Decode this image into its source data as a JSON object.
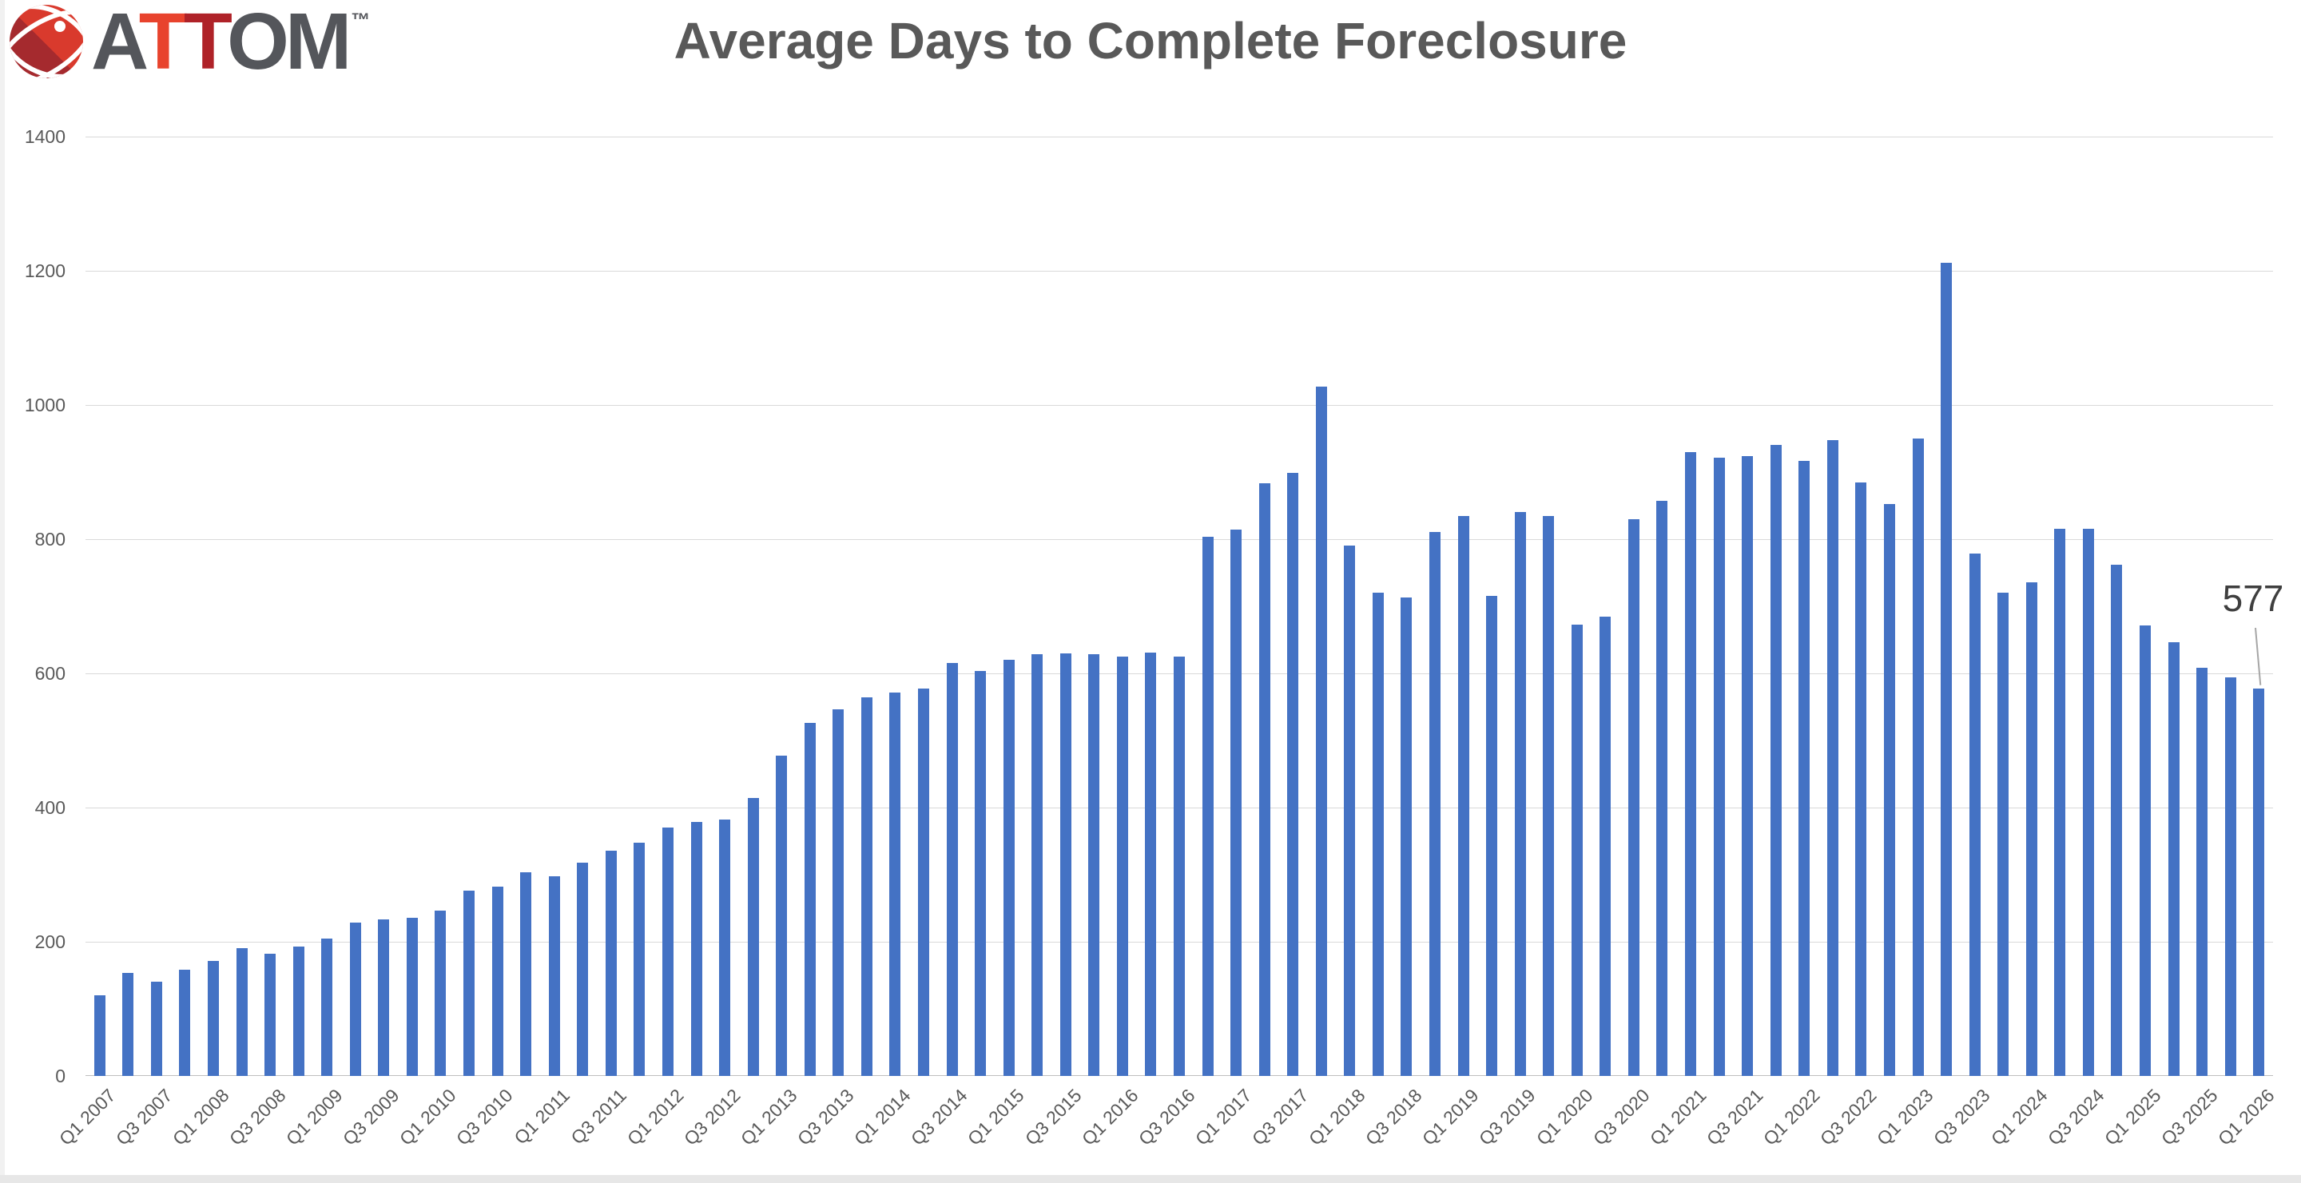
{
  "logo": {
    "letter_a": "A",
    "letter_t1": "T",
    "letter_t2": "T",
    "letters_om": "OM",
    "tm": "™",
    "accent_orange": "#e8432d",
    "accent_darkred": "#af2228",
    "text_gray": "#54565b"
  },
  "title": "Average Days to Complete Foreclosure",
  "chart_data": {
    "type": "bar",
    "title": "Average Days to Complete Foreclosure",
    "xlabel": "",
    "ylabel": "",
    "ylim": [
      0,
      1400
    ],
    "y_ticks": [
      0,
      200,
      400,
      600,
      800,
      1000,
      1200,
      1400
    ],
    "grid": true,
    "legend": false,
    "bar_color": "#4472c4",
    "gridline_color": "#d9d9d9",
    "x_tick_step": 2,
    "x_ticks": [
      "Q1 2007",
      "Q3 2007",
      "Q1 2008",
      "Q3 2008",
      "Q1 2009",
      "Q3 2009",
      "Q1 2010",
      "Q3 2010",
      "Q1 2011",
      "Q3 2011",
      "Q1 2012",
      "Q3 2012",
      "Q1 2013",
      "Q3 2013",
      "Q1 2014",
      "Q3 2014",
      "Q1 2015",
      "Q3 2015",
      "Q1 2016",
      "Q3 2016",
      "Q1 2017",
      "Q3 2017",
      "Q1 2018",
      "Q3 2018",
      "Q1 2019",
      "Q3 2019",
      "Q1 2020",
      "Q3 2020",
      "Q1 2021",
      "Q3 2021",
      "Q1 2022",
      "Q3 2022",
      "Q1 2023",
      "Q3 2023",
      "Q1 2024",
      "Q3 2024",
      "Q1 2025",
      "Q3 2025",
      "Q1 2026"
    ],
    "categories": [
      "Q1 2007",
      "Q2 2007",
      "Q3 2007",
      "Q4 2007",
      "Q1 2008",
      "Q2 2008",
      "Q3 2008",
      "Q4 2008",
      "Q1 2009",
      "Q2 2009",
      "Q3 2009",
      "Q4 2009",
      "Q1 2010",
      "Q2 2010",
      "Q3 2010",
      "Q4 2010",
      "Q1 2011",
      "Q2 2011",
      "Q3 2011",
      "Q4 2011",
      "Q1 2012",
      "Q2 2012",
      "Q3 2012",
      "Q4 2012",
      "Q1 2013",
      "Q2 2013",
      "Q3 2013",
      "Q4 2013",
      "Q1 2014",
      "Q2 2014",
      "Q3 2014",
      "Q4 2014",
      "Q1 2015",
      "Q2 2015",
      "Q3 2015",
      "Q4 2015",
      "Q1 2016",
      "Q2 2016",
      "Q3 2016",
      "Q4 2016",
      "Q1 2017",
      "Q2 2017",
      "Q3 2017",
      "Q4 2017",
      "Q1 2018",
      "Q2 2018",
      "Q3 2018",
      "Q4 2018",
      "Q1 2019",
      "Q2 2019",
      "Q3 2019",
      "Q4 2019",
      "Q1 2020",
      "Q2 2020",
      "Q3 2020",
      "Q4 2020",
      "Q1 2021",
      "Q2 2021",
      "Q3 2021",
      "Q4 2021",
      "Q1 2022",
      "Q2 2022",
      "Q3 2022",
      "Q4 2022",
      "Q1 2023",
      "Q2 2023",
      "Q3 2023",
      "Q4 2023",
      "Q1 2024",
      "Q2 2024",
      "Q3 2024",
      "Q4 2024",
      "Q1 2025",
      "Q2 2025",
      "Q3 2025",
      "Q4 2025",
      "Q1 2026"
    ],
    "values": [
      120,
      154,
      140,
      158,
      172,
      190,
      182,
      193,
      205,
      228,
      233,
      236,
      247,
      276,
      282,
      304,
      298,
      318,
      336,
      348,
      370,
      378,
      382,
      414,
      477,
      526,
      547,
      564,
      572,
      577,
      615,
      604,
      620,
      629,
      630,
      629,
      625,
      631,
      625,
      803,
      814,
      883,
      899,
      1027,
      791,
      720,
      713,
      811,
      835,
      716,
      841,
      834,
      673,
      685,
      830,
      857,
      930,
      922,
      924,
      941,
      917,
      948,
      885,
      852,
      950,
      1212,
      778,
      720,
      736,
      815,
      815,
      762,
      671,
      646,
      608,
      594,
      577
    ],
    "annotation": {
      "text": "577",
      "category": "Q1 2026",
      "value": 577
    }
  }
}
